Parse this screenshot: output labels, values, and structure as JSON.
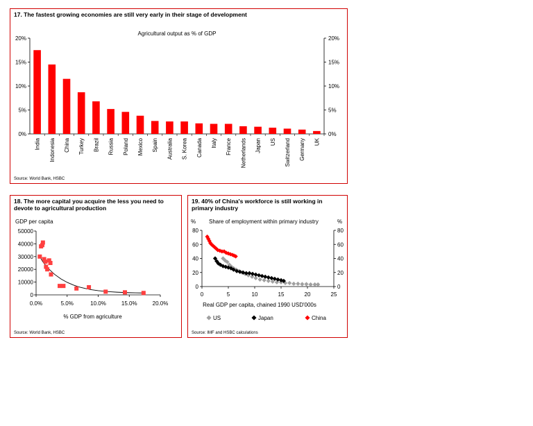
{
  "colors": {
    "accent": "#d00000",
    "bar": "#ff0000",
    "us": "#a0a0a0",
    "japan": "#000000",
    "china": "#ff0000",
    "scatter": "#ff4040"
  },
  "chart_data": [
    {
      "type": "bar",
      "title": "17. The fastest growing economies are still very early in their stage of development",
      "subtitle": "Agricultural output as % of GDP",
      "source": "Source: World Bank, HSBC",
      "categories": [
        "India",
        "Indonesia",
        "China",
        "Turkey",
        "Brazil",
        "Russia",
        "Poland",
        "Mexico",
        "Spain",
        "Australia",
        "S. Korea",
        "Canada",
        "Italy",
        "France",
        "Netherlands",
        "Japan",
        "US",
        "Switzerland",
        "Germany",
        "UK"
      ],
      "values": [
        17.5,
        14.5,
        11.5,
        8.7,
        6.8,
        5.2,
        4.6,
        3.8,
        2.7,
        2.6,
        2.6,
        2.2,
        2.1,
        2.1,
        1.6,
        1.5,
        1.3,
        1.1,
        0.9,
        0.6
      ],
      "ylim": [
        0,
        20
      ],
      "yticks": [
        "0%",
        "5%",
        "10%",
        "15%",
        "20%"
      ],
      "yticks_right": [
        "0%",
        "5%",
        "10%",
        "15%",
        "20%"
      ]
    },
    {
      "type": "scatter",
      "title": "18. The more capital you acquire the less you need to devote to agricultural production",
      "ylabel": "GDP per capita",
      "xlabel": "% GDP from agriculture",
      "source": "Source: World Bank, HSBC",
      "xlim": [
        0,
        20
      ],
      "ylim": [
        0,
        50000
      ],
      "xticks": [
        "0.0%",
        "5.0%",
        "10.0%",
        "15.0%",
        "20.0%"
      ],
      "yticks": [
        "0",
        "10000",
        "20000",
        "30000",
        "40000",
        "50000"
      ],
      "points": [
        [
          0.6,
          30000
        ],
        [
          0.8,
          38000
        ],
        [
          1.0,
          39000
        ],
        [
          1.1,
          41000
        ],
        [
          1.3,
          28000
        ],
        [
          1.5,
          26000
        ],
        [
          1.6,
          22000
        ],
        [
          1.8,
          20000
        ],
        [
          2.1,
          27000
        ],
        [
          2.3,
          25000
        ],
        [
          2.4,
          16000
        ],
        [
          3.8,
          7000
        ],
        [
          4.4,
          7000
        ],
        [
          6.5,
          5000
        ],
        [
          8.5,
          6000
        ],
        [
          11.2,
          2500
        ],
        [
          14.3,
          2000
        ],
        [
          17.3,
          1500
        ]
      ],
      "trend": [
        [
          0.5,
          31000
        ],
        [
          1,
          26500
        ],
        [
          2,
          20500
        ],
        [
          3,
          16000
        ],
        [
          4,
          12500
        ],
        [
          5,
          9800
        ],
        [
          6,
          7700
        ],
        [
          7,
          6100
        ],
        [
          8,
          4900
        ],
        [
          9,
          4000
        ],
        [
          10,
          3300
        ],
        [
          11,
          2800
        ],
        [
          12,
          2400
        ],
        [
          13,
          2100
        ],
        [
          14,
          1900
        ],
        [
          15,
          1700
        ],
        [
          16,
          1600
        ],
        [
          17,
          1500
        ]
      ]
    },
    {
      "type": "scatter",
      "title": "19. 40% of China's workforce is still working in primary industry",
      "subtitle": "Share of employment within primary  industry",
      "xlabel": "Real GDP per capita, chained 1990 USD'000s",
      "source": "Source: IMF and HSBC calculations",
      "unit_left": "%",
      "unit_right": "%",
      "xlim": [
        0,
        25
      ],
      "ylim": [
        0,
        80
      ],
      "xticks": [
        "0",
        "5",
        "10",
        "15",
        "20",
        "25"
      ],
      "yticks": [
        "0",
        "20",
        "40",
        "60",
        "80"
      ],
      "yticks_right": [
        "0",
        "20",
        "40",
        "60",
        "80"
      ],
      "legend": [
        "US",
        "Japan",
        "China"
      ],
      "series": [
        {
          "name": "US",
          "points": [
            [
              4,
              40
            ],
            [
              4.4,
              37
            ],
            [
              4.8,
              35
            ],
            [
              5.2,
              31
            ],
            [
              5.6,
              28
            ],
            [
              6,
              26
            ],
            [
              6.5,
              24
            ],
            [
              7,
              22
            ],
            [
              7.6,
              20
            ],
            [
              8.2,
              18
            ],
            [
              8.8,
              16
            ],
            [
              9.5,
              14
            ],
            [
              10.2,
              12
            ],
            [
              11,
              10
            ],
            [
              11.8,
              9
            ],
            [
              12.6,
              8
            ],
            [
              13.4,
              7
            ],
            [
              14.2,
              6
            ],
            [
              15,
              6
            ],
            [
              15.8,
              5
            ],
            [
              16.6,
              5
            ],
            [
              17.4,
              4
            ],
            [
              18.2,
              4
            ],
            [
              19,
              3.5
            ],
            [
              19.8,
              3.5
            ],
            [
              20.6,
              3
            ],
            [
              21.4,
              3
            ],
            [
              22,
              3
            ]
          ]
        },
        {
          "name": "Japan",
          "points": [
            [
              2.5,
              40
            ],
            [
              2.8,
              36
            ],
            [
              3.1,
              33
            ],
            [
              3.5,
              31
            ],
            [
              4,
              29
            ],
            [
              4.5,
              28
            ],
            [
              5,
              27
            ],
            [
              5.5,
              26
            ],
            [
              6,
              24
            ],
            [
              6.6,
              22
            ],
            [
              7.2,
              21
            ],
            [
              7.8,
              20
            ],
            [
              8.4,
              19
            ],
            [
              9,
              19
            ],
            [
              9.6,
              18
            ],
            [
              10.2,
              17
            ],
            [
              10.8,
              16
            ],
            [
              11.4,
              15
            ],
            [
              12,
              14
            ],
            [
              12.6,
              13
            ],
            [
              13.2,
              12
            ],
            [
              13.8,
              11
            ],
            [
              14.4,
              10
            ],
            [
              15,
              9
            ],
            [
              15.5,
              8
            ]
          ]
        },
        {
          "name": "China",
          "points": [
            [
              1,
              71
            ],
            [
              1.2,
              68
            ],
            [
              1.4,
              65
            ],
            [
              1.6,
              62
            ],
            [
              1.8,
              60
            ],
            [
              2.1,
              58
            ],
            [
              2.4,
              56
            ],
            [
              2.7,
              54
            ],
            [
              3,
              52
            ],
            [
              3.4,
              51
            ],
            [
              3.8,
              50
            ],
            [
              4.2,
              50
            ],
            [
              4.6,
              48
            ],
            [
              5,
              47
            ],
            [
              5.4,
              46
            ],
            [
              5.8,
              45
            ],
            [
              6.1,
              44
            ],
            [
              6.4,
              43
            ]
          ]
        }
      ]
    }
  ]
}
